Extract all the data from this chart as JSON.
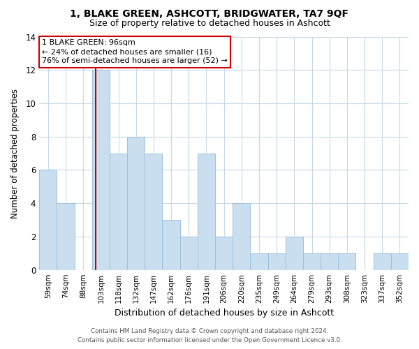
{
  "title1": "1, BLAKE GREEN, ASHCOTT, BRIDGWATER, TA7 9QF",
  "title2": "Size of property relative to detached houses in Ashcott",
  "xlabel": "Distribution of detached houses by size in Ashcott",
  "ylabel": "Number of detached properties",
  "bin_labels": [
    "59sqm",
    "74sqm",
    "88sqm",
    "103sqm",
    "118sqm",
    "132sqm",
    "147sqm",
    "162sqm",
    "176sqm",
    "191sqm",
    "206sqm",
    "220sqm",
    "235sqm",
    "249sqm",
    "264sqm",
    "279sqm",
    "293sqm",
    "308sqm",
    "323sqm",
    "337sqm",
    "352sqm"
  ],
  "bar_values": [
    6,
    4,
    0,
    12,
    7,
    8,
    7,
    3,
    2,
    7,
    2,
    4,
    1,
    1,
    2,
    1,
    1,
    1,
    0,
    1,
    1
  ],
  "bar_color": "#c9dff0",
  "bar_edge_color": "#9fbfda",
  "vline_x_index": 2.72,
  "vline_color": "#cc0000",
  "ylim": [
    0,
    14
  ],
  "yticks": [
    0,
    2,
    4,
    6,
    8,
    10,
    12,
    14
  ],
  "annotation_line1": "1 BLAKE GREEN: 96sqm",
  "annotation_line2": "← 24% of detached houses are smaller (16)",
  "annotation_line3": "76% of semi-detached houses are larger (52) →",
  "annotation_box_color": "#ffffff",
  "annotation_box_edge": "#cc0000",
  "footer1": "Contains HM Land Registry data © Crown copyright and database right 2024.",
  "footer2": "Contains public sector information licensed under the Open Government Licence v3.0.",
  "background_color": "#ffffff",
  "grid_color": "#c8dae8"
}
